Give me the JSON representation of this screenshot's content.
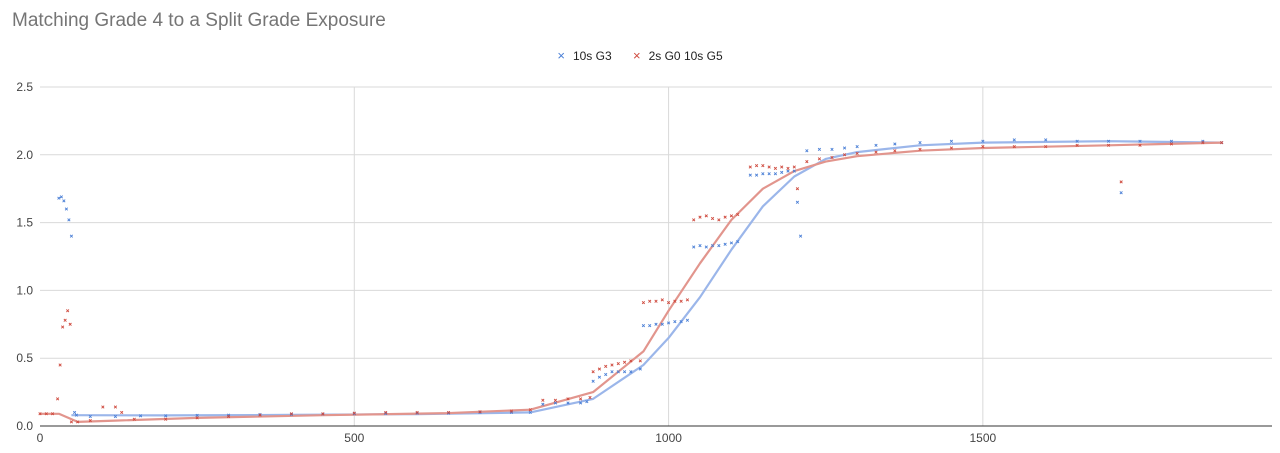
{
  "chart_data": {
    "type": "scatter",
    "title": "Matching Grade 4 to a Split Grade Exposure",
    "xlabel": "",
    "ylabel": "",
    "xlim": [
      0,
      1960
    ],
    "ylim": [
      0,
      2.5
    ],
    "xticks": [
      0,
      500,
      1000,
      1500
    ],
    "yticks": [
      0.0,
      0.5,
      1.0,
      1.5,
      2.0,
      2.5
    ],
    "ytick_labels": [
      "0.0",
      "0.5",
      "1.0",
      "1.5",
      "2.0",
      "2.5"
    ],
    "grid": true,
    "legend_position": "top",
    "series": [
      {
        "name": "10s G3",
        "color": "#4a7fd6",
        "trend_color": "#9bb6ea",
        "marker": "×",
        "points": [
          [
            30,
            1.68
          ],
          [
            34,
            1.69
          ],
          [
            38,
            1.66
          ],
          [
            42,
            1.6
          ],
          [
            46,
            1.52
          ],
          [
            50,
            1.4
          ],
          [
            55,
            0.1
          ],
          [
            58,
            0.08
          ],
          [
            80,
            0.07
          ],
          [
            120,
            0.07
          ],
          [
            160,
            0.075
          ],
          [
            200,
            0.075
          ],
          [
            250,
            0.078
          ],
          [
            300,
            0.08
          ],
          [
            350,
            0.085
          ],
          [
            400,
            0.085
          ],
          [
            450,
            0.088
          ],
          [
            500,
            0.09
          ],
          [
            550,
            0.092
          ],
          [
            600,
            0.095
          ],
          [
            650,
            0.095
          ],
          [
            700,
            0.1
          ],
          [
            750,
            0.1
          ],
          [
            780,
            0.1
          ],
          [
            800,
            0.16
          ],
          [
            820,
            0.17
          ],
          [
            840,
            0.17
          ],
          [
            860,
            0.17
          ],
          [
            870,
            0.18
          ],
          [
            880,
            0.33
          ],
          [
            890,
            0.36
          ],
          [
            900,
            0.38
          ],
          [
            910,
            0.4
          ],
          [
            920,
            0.4
          ],
          [
            930,
            0.4
          ],
          [
            940,
            0.4
          ],
          [
            955,
            0.42
          ],
          [
            960,
            0.74
          ],
          [
            970,
            0.74
          ],
          [
            980,
            0.75
          ],
          [
            990,
            0.75
          ],
          [
            1000,
            0.76
          ],
          [
            1010,
            0.77
          ],
          [
            1020,
            0.77
          ],
          [
            1030,
            0.78
          ],
          [
            1040,
            1.32
          ],
          [
            1050,
            1.33
          ],
          [
            1060,
            1.32
          ],
          [
            1070,
            1.33
          ],
          [
            1080,
            1.33
          ],
          [
            1090,
            1.34
          ],
          [
            1100,
            1.35
          ],
          [
            1110,
            1.36
          ],
          [
            1130,
            1.85
          ],
          [
            1140,
            1.85
          ],
          [
            1150,
            1.86
          ],
          [
            1160,
            1.86
          ],
          [
            1170,
            1.86
          ],
          [
            1180,
            1.87
          ],
          [
            1190,
            1.88
          ],
          [
            1200,
            1.88
          ],
          [
            1205,
            1.65
          ],
          [
            1210,
            1.4
          ],
          [
            1220,
            2.03
          ],
          [
            1240,
            2.04
          ],
          [
            1260,
            2.04
          ],
          [
            1280,
            2.05
          ],
          [
            1300,
            2.06
          ],
          [
            1330,
            2.07
          ],
          [
            1360,
            2.08
          ],
          [
            1400,
            2.09
          ],
          [
            1450,
            2.1
          ],
          [
            1500,
            2.1
          ],
          [
            1550,
            2.11
          ],
          [
            1600,
            2.11
          ],
          [
            1650,
            2.1
          ],
          [
            1700,
            2.1
          ],
          [
            1720,
            1.72
          ],
          [
            1750,
            2.1
          ],
          [
            1800,
            2.1
          ],
          [
            1850,
            2.1
          ],
          [
            1880,
            2.09
          ]
        ],
        "trend": [
          [
            50,
            0.08
          ],
          [
            200,
            0.078
          ],
          [
            400,
            0.082
          ],
          [
            600,
            0.088
          ],
          [
            780,
            0.1
          ],
          [
            880,
            0.2
          ],
          [
            960,
            0.45
          ],
          [
            1000,
            0.65
          ],
          [
            1050,
            0.95
          ],
          [
            1100,
            1.3
          ],
          [
            1150,
            1.62
          ],
          [
            1200,
            1.84
          ],
          [
            1250,
            1.97
          ],
          [
            1300,
            2.02
          ],
          [
            1400,
            2.07
          ],
          [
            1500,
            2.09
          ],
          [
            1700,
            2.1
          ],
          [
            1880,
            2.09
          ]
        ]
      },
      {
        "name": "2s G0 10s G5",
        "color": "#cf4a3e",
        "trend_color": "#e2958d",
        "marker": "×",
        "points": [
          [
            0,
            0.09
          ],
          [
            10,
            0.09
          ],
          [
            20,
            0.09
          ],
          [
            28,
            0.2
          ],
          [
            32,
            0.45
          ],
          [
            36,
            0.73
          ],
          [
            40,
            0.78
          ],
          [
            44,
            0.85
          ],
          [
            48,
            0.75
          ],
          [
            50,
            0.03
          ],
          [
            60,
            0.03
          ],
          [
            80,
            0.04
          ],
          [
            100,
            0.14
          ],
          [
            120,
            0.14
          ],
          [
            130,
            0.1
          ],
          [
            150,
            0.05
          ],
          [
            200,
            0.05
          ],
          [
            250,
            0.06
          ],
          [
            300,
            0.07
          ],
          [
            350,
            0.08
          ],
          [
            400,
            0.09
          ],
          [
            450,
            0.09
          ],
          [
            500,
            0.095
          ],
          [
            550,
            0.1
          ],
          [
            600,
            0.1
          ],
          [
            650,
            0.1
          ],
          [
            700,
            0.105
          ],
          [
            750,
            0.11
          ],
          [
            780,
            0.12
          ],
          [
            800,
            0.19
          ],
          [
            820,
            0.19
          ],
          [
            840,
            0.2
          ],
          [
            860,
            0.2
          ],
          [
            875,
            0.21
          ],
          [
            880,
            0.4
          ],
          [
            890,
            0.42
          ],
          [
            900,
            0.44
          ],
          [
            910,
            0.45
          ],
          [
            920,
            0.46
          ],
          [
            930,
            0.47
          ],
          [
            940,
            0.48
          ],
          [
            955,
            0.48
          ],
          [
            960,
            0.91
          ],
          [
            970,
            0.92
          ],
          [
            980,
            0.92
          ],
          [
            990,
            0.93
          ],
          [
            1000,
            0.91
          ],
          [
            1010,
            0.92
          ],
          [
            1020,
            0.92
          ],
          [
            1030,
            0.93
          ],
          [
            1040,
            1.52
          ],
          [
            1050,
            1.54
          ],
          [
            1060,
            1.55
          ],
          [
            1070,
            1.53
          ],
          [
            1080,
            1.52
          ],
          [
            1090,
            1.54
          ],
          [
            1100,
            1.55
          ],
          [
            1110,
            1.56
          ],
          [
            1130,
            1.91
          ],
          [
            1140,
            1.92
          ],
          [
            1150,
            1.92
          ],
          [
            1160,
            1.91
          ],
          [
            1170,
            1.9
          ],
          [
            1180,
            1.91
          ],
          [
            1190,
            1.9
          ],
          [
            1200,
            1.91
          ],
          [
            1205,
            1.75
          ],
          [
            1220,
            1.95
          ],
          [
            1240,
            1.97
          ],
          [
            1260,
            1.98
          ],
          [
            1280,
            2.0
          ],
          [
            1300,
            2.01
          ],
          [
            1330,
            2.02
          ],
          [
            1360,
            2.03
          ],
          [
            1400,
            2.04
          ],
          [
            1450,
            2.05
          ],
          [
            1500,
            2.06
          ],
          [
            1550,
            2.06
          ],
          [
            1600,
            2.06
          ],
          [
            1650,
            2.07
          ],
          [
            1700,
            2.07
          ],
          [
            1720,
            1.8
          ],
          [
            1750,
            2.07
          ],
          [
            1800,
            2.08
          ],
          [
            1850,
            2.09
          ],
          [
            1880,
            2.09
          ]
        ],
        "trend": [
          [
            0,
            0.09
          ],
          [
            30,
            0.09
          ],
          [
            60,
            0.03
          ],
          [
            120,
            0.04
          ],
          [
            250,
            0.06
          ],
          [
            450,
            0.08
          ],
          [
            650,
            0.095
          ],
          [
            780,
            0.12
          ],
          [
            880,
            0.25
          ],
          [
            960,
            0.55
          ],
          [
            1000,
            0.85
          ],
          [
            1050,
            1.2
          ],
          [
            1100,
            1.52
          ],
          [
            1150,
            1.75
          ],
          [
            1200,
            1.88
          ],
          [
            1250,
            1.95
          ],
          [
            1300,
            1.99
          ],
          [
            1400,
            2.03
          ],
          [
            1500,
            2.05
          ],
          [
            1700,
            2.07
          ],
          [
            1880,
            2.09
          ]
        ]
      }
    ]
  }
}
